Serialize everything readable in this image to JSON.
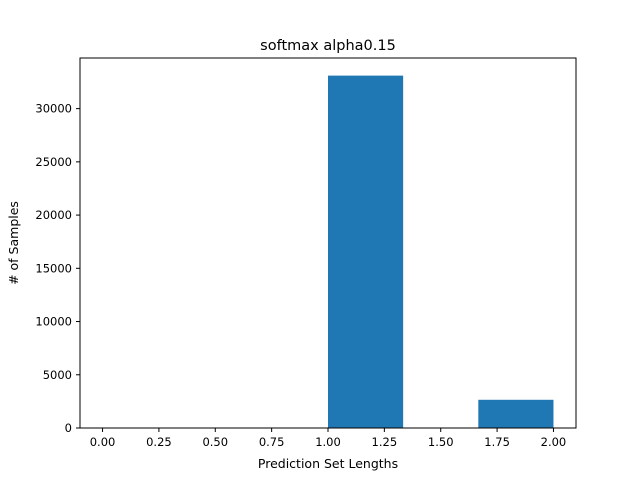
{
  "chart_data": {
    "type": "bar",
    "title": "softmax alpha0.15",
    "xlabel": "Prediction Set Lengths",
    "ylabel": "# of Samples",
    "bins": [
      {
        "x0": 1.0,
        "x1": 1.3333,
        "value": 33100
      },
      {
        "x0": 1.6667,
        "x1": 2.0,
        "value": 2650
      }
    ],
    "xlim": [
      -0.1,
      2.1
    ],
    "ylim": [
      0,
      34755
    ],
    "xticks": [
      0.0,
      0.25,
      0.5,
      0.75,
      1.0,
      1.25,
      1.5,
      1.75,
      2.0
    ],
    "xtick_labels": [
      "0.00",
      "0.25",
      "0.50",
      "0.75",
      "1.00",
      "1.25",
      "1.50",
      "1.75",
      "2.00"
    ],
    "yticks": [
      0,
      5000,
      10000,
      15000,
      20000,
      25000,
      30000
    ],
    "ytick_labels": [
      "0",
      "5000",
      "10000",
      "15000",
      "20000",
      "25000",
      "30000"
    ],
    "bar_color": "#1f77b4",
    "grid": false,
    "legend": "none"
  }
}
